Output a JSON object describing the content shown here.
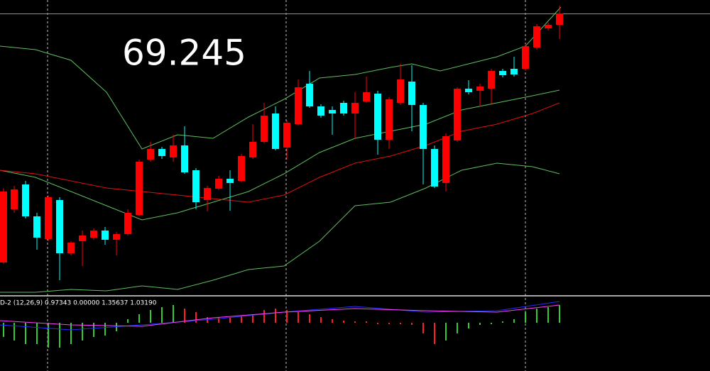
{
  "chart_data": [
    {
      "type": "candlestick",
      "annotation": "69.245",
      "xlim": [
        0,
        1000
      ],
      "ylim": [
        0,
        415
      ],
      "up_color": "#ff0000",
      "down_color": "#00ffff",
      "x": [
        5,
        20,
        36,
        52,
        68,
        84,
        100,
        116,
        132,
        148,
        164,
        180,
        196,
        212,
        228,
        244,
        260,
        276,
        292,
        308,
        324,
        340,
        356,
        372,
        388,
        404,
        420,
        436,
        452,
        468,
        484,
        500,
        516,
        532,
        548,
        564,
        580,
        596,
        612,
        628,
        644,
        660,
        676,
        692,
        708,
        724,
        740,
        756,
        772,
        788
      ],
      "open": [
        45,
        120,
        155,
        110,
        78,
        133,
        58,
        75,
        80,
        90,
        77,
        85,
        112,
        190,
        205,
        193,
        210,
        175,
        133,
        149,
        163,
        160,
        193,
        215,
        255,
        207,
        240,
        297,
        265,
        260,
        270,
        255,
        272,
        283,
        218,
        270,
        300,
        267,
        205,
        157,
        217,
        290,
        287,
        290,
        315,
        318,
        318,
        348,
        375,
        380
      ],
      "high": [
        150,
        153,
        160,
        115,
        140,
        137,
        75,
        90,
        93,
        95,
        88,
        120,
        190,
        215,
        208,
        225,
        237,
        178,
        153,
        167,
        175,
        198,
        240,
        270,
        265,
        245,
        303,
        315,
        268,
        265,
        273,
        285,
        307,
        287,
        278,
        325,
        323,
        270,
        210,
        227,
        292,
        302,
        297,
        318,
        318,
        335,
        353,
        381,
        383,
        407
      ],
      "low": [
        43,
        115,
        107,
        63,
        75,
        20,
        55,
        40,
        77,
        70,
        55,
        83,
        110,
        187,
        191,
        187,
        170,
        120,
        117,
        147,
        118,
        158,
        191,
        213,
        203,
        190,
        238,
        263,
        249,
        225,
        252,
        220,
        270,
        197,
        205,
        267,
        230,
        155,
        150,
        145,
        215,
        282,
        265,
        267,
        306,
        307,
        315,
        345,
        372,
        360
      ],
      "close": [
        145,
        148,
        110,
        80,
        137,
        58,
        73,
        83,
        90,
        77,
        85,
        115,
        187,
        205,
        195,
        210,
        172,
        130,
        150,
        163,
        157,
        195,
        215,
        252,
        205,
        242,
        292,
        265,
        252,
        255,
        255,
        270,
        285,
        218,
        275,
        303,
        267,
        205,
        152,
        223,
        290,
        285,
        293,
        315,
        309,
        310,
        350,
        378,
        380,
        396
      ],
      "series": [
        {
          "color": "#5fbf5f",
          "x": [
            0,
            50,
            100,
            150,
            200,
            250,
            300,
            350,
            400,
            450,
            500,
            550,
            580,
            620,
            660,
            700,
            740,
            790
          ],
          "values": [
            350,
            345,
            330,
            285,
            205,
            225,
            220,
            250,
            275,
            305,
            310,
            320,
            325,
            315,
            325,
            335,
            350,
            405
          ]
        },
        {
          "color": "#5fbf5f",
          "x": [
            0,
            50,
            100,
            150,
            200,
            250,
            300,
            350,
            400,
            450,
            500,
            550,
            600,
            650,
            700,
            750,
            788
          ],
          "values": [
            175,
            165,
            145,
            125,
            105,
            115,
            130,
            145,
            170,
            200,
            220,
            230,
            240,
            260,
            270,
            280,
            288
          ]
        },
        {
          "color": "#e01010",
          "x": [
            0,
            50,
            100,
            150,
            200,
            250,
            300,
            350,
            400,
            450,
            500,
            550,
            600,
            650,
            700,
            750,
            788
          ],
          "values": [
            175,
            170,
            160,
            150,
            145,
            140,
            135,
            130,
            140,
            165,
            185,
            195,
            210,
            230,
            240,
            255,
            270
          ]
        },
        {
          "color": "#5fbf5f",
          "x": [
            0,
            50,
            100,
            150,
            200,
            250,
            300,
            350,
            400,
            450,
            500,
            550,
            600,
            650,
            700,
            750,
            788
          ],
          "values": [
            3,
            3,
            7,
            5,
            12,
            7,
            20,
            35,
            40,
            75,
            125,
            130,
            150,
            175,
            185,
            180,
            170
          ]
        }
      ]
    },
    {
      "type": "bar",
      "title": "D-2 (12,26,9) 0.97343 0.00000 1.35637 1.03190",
      "xlim": [
        0,
        1000
      ],
      "ylim": [
        -68,
        37
      ],
      "x": [
        5,
        20,
        36,
        52,
        68,
        84,
        100,
        116,
        132,
        148,
        164,
        180,
        196,
        212,
        228,
        244,
        260,
        276,
        292,
        308,
        324,
        340,
        356,
        372,
        388,
        404,
        420,
        436,
        452,
        468,
        484,
        500,
        516,
        532,
        548,
        564,
        580,
        596,
        612,
        628,
        644,
        660,
        676,
        692,
        708,
        724,
        740,
        756,
        772,
        788
      ],
      "values": [
        -20,
        -25,
        -30,
        -30,
        -35,
        -35,
        -30,
        -25,
        -20,
        -18,
        -12,
        5,
        12,
        18,
        22,
        25,
        20,
        15,
        8,
        8,
        8,
        10,
        12,
        18,
        20,
        18,
        15,
        12,
        8,
        5,
        3,
        2,
        2,
        -2,
        -2,
        -2,
        -3,
        -15,
        -30,
        -25,
        -15,
        -8,
        -3,
        -2,
        2,
        5,
        15,
        20,
        22,
        25
      ],
      "colors": [
        "#33cc33",
        "#33cc33",
        "#33cc33",
        "#33cc33",
        "#33cc33",
        "#33cc33",
        "#33cc33",
        "#33cc33",
        "#33cc33",
        "#33cc33",
        "#33cc33",
        "#33cc33",
        "#33cc33",
        "#33cc33",
        "#33cc33",
        "#33cc33",
        "#ff2020",
        "#ff2020",
        "#ff2020",
        "#ff2020",
        "#ff2020",
        "#ff2020",
        "#ff2020",
        "#ff2020",
        "#ff2020",
        "#ff2020",
        "#ff2020",
        "#ff2020",
        "#ff2020",
        "#ff2020",
        "#ff2020",
        "#ff2020",
        "#ff2020",
        "#ff2020",
        "#ff2020",
        "#ff2020",
        "#ff2020",
        "#ff2020",
        "#ff2020",
        "#33cc33",
        "#33cc33",
        "#33cc33",
        "#33cc33",
        "#33cc33",
        "#33cc33",
        "#33cc33",
        "#33cc33",
        "#33cc33",
        "#33cc33",
        "#33cc33"
      ],
      "series": [
        {
          "color": "#2a2aff",
          "x": [
            0,
            100,
            200,
            300,
            400,
            500,
            600,
            700,
            788
          ],
          "values": [
            -3,
            -10,
            -3,
            5,
            15,
            23,
            15,
            17,
            30
          ]
        },
        {
          "color": "#ff40ff",
          "x": [
            0,
            100,
            200,
            300,
            400,
            500,
            600,
            700,
            788
          ],
          "values": [
            3,
            -3,
            -5,
            7,
            15,
            20,
            17,
            15,
            25
          ]
        }
      ]
    }
  ]
}
